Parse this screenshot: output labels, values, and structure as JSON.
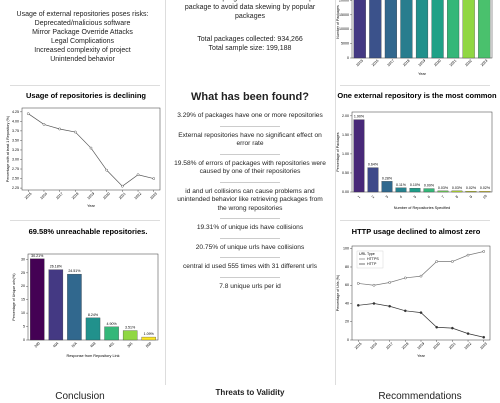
{
  "risks": {
    "heading": "Usage of external repositories poses risks:",
    "items": [
      "Deprecated/malicious software",
      "Mirror Package Override Attacks",
      "Legal Complications",
      "Increased complexity of project",
      "Unintended behavior"
    ]
  },
  "sampling": {
    "text": "Random sampling to include one version per package to avoid data skewing by popular packages",
    "total_packages": "Total packages collected: 934,266",
    "sample_size": "Total sample size: 199,188"
  },
  "findings": {
    "title": "What has been found?",
    "items": [
      "3.29%  of packages have one or more repositories",
      "External repositories have no significant effect on error rate",
      "19.58% of errors of packages with repositories were caused by  one of their repositories",
      "id and url collisions can cause problems and unintended behavior like retrieving packages from the wrong repositories",
      "19.31% of unique ids have collisions",
      "20.75% of unique urls have collisions",
      "central id used 555 times with 31 different urls",
      "7.8 unique urls per id"
    ]
  },
  "sections": [
    "Conclusion",
    "Threats to Validity",
    "Recommendations"
  ],
  "chart_data": [
    {
      "type": "bar",
      "categories": [
        "2015",
        "2016",
        "2017",
        "2018",
        "2019",
        "2020",
        "2021",
        "2022",
        "2023"
      ],
      "values": [
        23500,
        24000,
        24500,
        25000,
        24800,
        24200,
        23000,
        25500,
        24600
      ],
      "colors": [
        "#443983",
        "#3b528b",
        "#31688e",
        "#287d8e",
        "#21918c",
        "#1fa187",
        "#35b779",
        "#90d743",
        "#4ac16d"
      ],
      "x_label": "Year",
      "y_label": "Number of Packages",
      "ylim": [
        0,
        25000
      ],
      "yticks": [
        0,
        5000,
        10000,
        15000,
        20000
      ]
    },
    {
      "type": "line",
      "title": "Usage of repositories is declining",
      "x": [
        2015,
        2016,
        2017,
        2018,
        2019,
        2020,
        2021,
        2022,
        2023
      ],
      "xlim": [
        2014.6,
        2023.4
      ],
      "xticks": [
        2015,
        2016,
        2017,
        2018,
        2019,
        2020,
        2021,
        2022,
        2023
      ],
      "series": [
        {
          "name": "Usage",
          "color": "#555",
          "values": [
            4.2,
            3.92,
            3.8,
            3.72,
            3.3,
            2.72,
            2.3,
            2.6,
            2.5
          ]
        }
      ],
      "x_label": "Year",
      "y_label": "Percentage with at least 1 Repository (%)",
      "ylim": [
        2.2,
        4.35
      ],
      "yticks": [
        2.25,
        {
          "value": 2.5,
          "label": "2.50"
        },
        2.75,
        {
          "value": 3,
          "label": "3.00"
        },
        3.25,
        {
          "value": 3.5,
          "label": "3.50"
        },
        3.75,
        {
          "value": 4,
          "label": "4.00"
        },
        4.25
      ]
    },
    {
      "type": "bar",
      "title": "One external repository is the most common",
      "categories": [
        "1",
        "2",
        "3",
        "4",
        "5",
        "6",
        "7",
        "8",
        "9",
        "10"
      ],
      "values": [
        1.9,
        0.64,
        0.28,
        0.11,
        0.1,
        0.09,
        0.03,
        0.03,
        0.02,
        0.02
      ],
      "value_labels": [
        "1.90%",
        "0.64%",
        "0.28%",
        "0.11%",
        "0.10%",
        "0.09%",
        "0.03%",
        "0.03%",
        "0.02%",
        "0.02%"
      ],
      "colors": [
        "#482878",
        "#3e4989",
        "#31688e",
        "#26828e",
        "#1f9e89",
        "#35b779",
        "#6ece58",
        "#b5de2b",
        "#d8e219",
        "#fde725"
      ],
      "x_label": "Number of Repositories Specified",
      "y_label": "Percentage of Packages",
      "ylim": [
        0,
        2.1
      ],
      "yticks": [
        {
          "value": 0,
          "label": "0.00"
        },
        {
          "value": 0.5,
          "label": "0.50"
        },
        {
          "value": 1,
          "label": "1.00"
        },
        {
          "value": 1.5,
          "label": "1.50"
        },
        {
          "value": 2,
          "label": "2.00"
        }
      ]
    },
    {
      "type": "bar",
      "title": "69.58% unreachable repositories.",
      "categories": [
        "200",
        "404",
        "N/A",
        "403",
        "401",
        "301",
        "500"
      ],
      "values": [
        30.21,
        26.18,
        24.51,
        8.24,
        4.9,
        3.51,
        1.09
      ],
      "value_labels": [
        "30.21%",
        "26.18%",
        "24.51%",
        "8.24%",
        "4.90%",
        "3.51%",
        "1.09%"
      ],
      "colors": [
        "#440154",
        "#443983",
        "#31688e",
        "#21918c",
        "#35b779",
        "#90d743",
        "#fde725"
      ],
      "x_label": "Response from Repository Link",
      "y_label": "Percentage of Unique urls(%)",
      "ylim": [
        0,
        32
      ],
      "yticks": [
        0,
        5,
        10,
        15,
        20,
        25,
        30
      ]
    },
    {
      "type": "line",
      "title": "HTTP usage declined to almost zero",
      "x": [
        2015,
        2016,
        2017,
        2018,
        2019,
        2020,
        2021,
        2022,
        2023
      ],
      "xlim": [
        2014.6,
        2023.4
      ],
      "xticks": [
        2015,
        2016,
        2017,
        2018,
        2019,
        2020,
        2021,
        2022,
        2023
      ],
      "legend_title": "URL Type",
      "legend": "upper left",
      "series": [
        {
          "name": "HTTPS",
          "color": "#777",
          "values": [
            62,
            60,
            63,
            68,
            70,
            86,
            86,
            93,
            97
          ]
        },
        {
          "name": "HTTP",
          "color": "#333",
          "values": [
            38,
            40,
            37,
            32,
            30,
            14,
            13,
            7,
            3
          ]
        }
      ],
      "x_label": "Year",
      "y_label": "Percentage of Urls (%)",
      "ylim": [
        0,
        103
      ],
      "yticks": [
        0,
        20,
        40,
        60,
        80,
        100
      ]
    }
  ]
}
